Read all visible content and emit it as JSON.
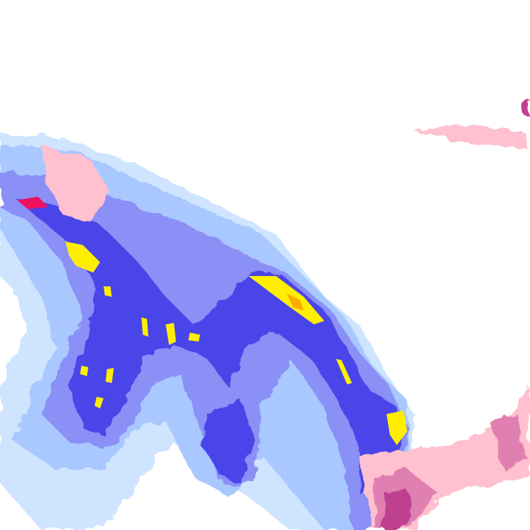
{
  "map": {
    "type": "precipitation-radar-tile",
    "colors": {
      "background": "#ffffff",
      "rain_very_light": "#cfe4ff",
      "rain_light": "#a8c8ff",
      "rain_moderate": "#8a90f5",
      "rain_heavy": "#4a44e8",
      "rain_very_heavy": "#ffee00",
      "rain_intense": "#ffaa00",
      "rain_extreme": "#ee1160",
      "mixed_light": "#ffc0d0",
      "mixed_moderate": "#e080b0",
      "mixed_heavy": "#c04090"
    }
  }
}
